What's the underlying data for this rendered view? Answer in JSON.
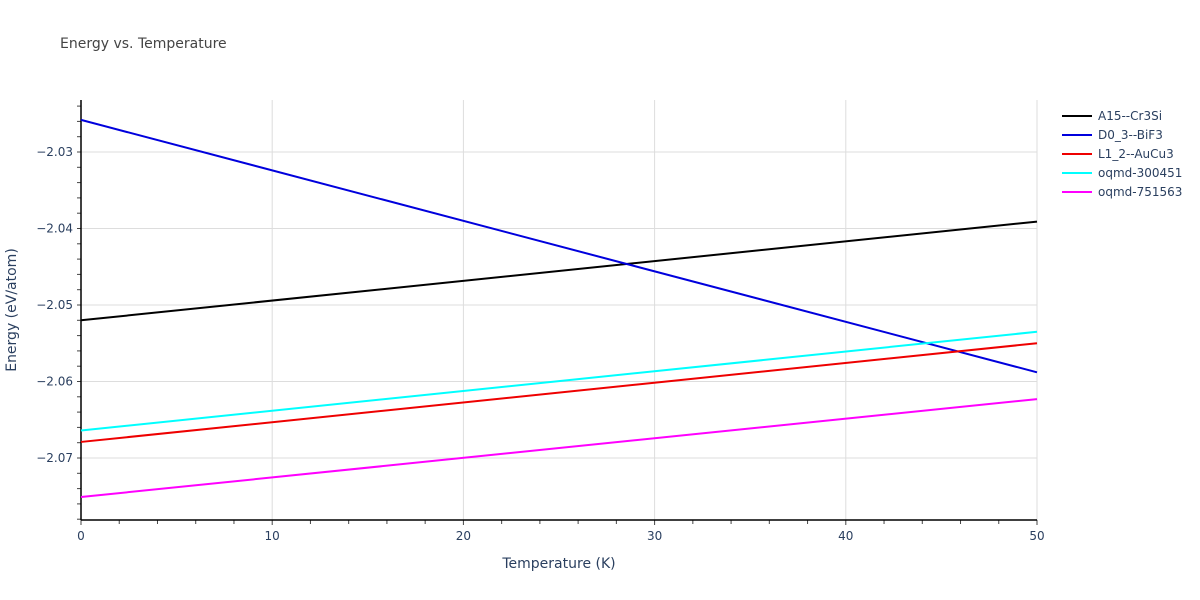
{
  "chart_data": {
    "type": "line",
    "title": "Energy vs. Temperature",
    "xlabel": "Temperature (K)",
    "ylabel": "Energy (eV/atom)",
    "xlim": [
      0,
      50
    ],
    "ylim": [
      -2.0783,
      -2.0232
    ],
    "x_ticks": [
      "0",
      "10",
      "20",
      "30",
      "40",
      "50"
    ],
    "y_ticks": [
      "−2.03",
      "−2.04",
      "−2.05",
      "−2.06",
      "−2.07"
    ],
    "grid": true,
    "legend_position": "right",
    "series": [
      {
        "name": "A15--Cr3Si",
        "color": "#000000",
        "x": [
          0,
          50
        ],
        "values": [
          -2.052,
          -2.0391
        ]
      },
      {
        "name": "D0_3--BiF3",
        "color": "#0000dd",
        "x": [
          0,
          50
        ],
        "values": [
          -2.0258,
          -2.0588
        ]
      },
      {
        "name": "L1_2--AuCu3",
        "color": "#ee0000",
        "x": [
          0,
          50
        ],
        "values": [
          -2.0679,
          -2.055
        ]
      },
      {
        "name": "oqmd-300451",
        "color": "#00ffff",
        "x": [
          0,
          50
        ],
        "values": [
          -2.0664,
          -2.0535
        ]
      },
      {
        "name": "oqmd-751563",
        "color": "#ff00ff",
        "x": [
          0,
          50
        ],
        "values": [
          -2.0751,
          -2.0623
        ]
      }
    ]
  }
}
